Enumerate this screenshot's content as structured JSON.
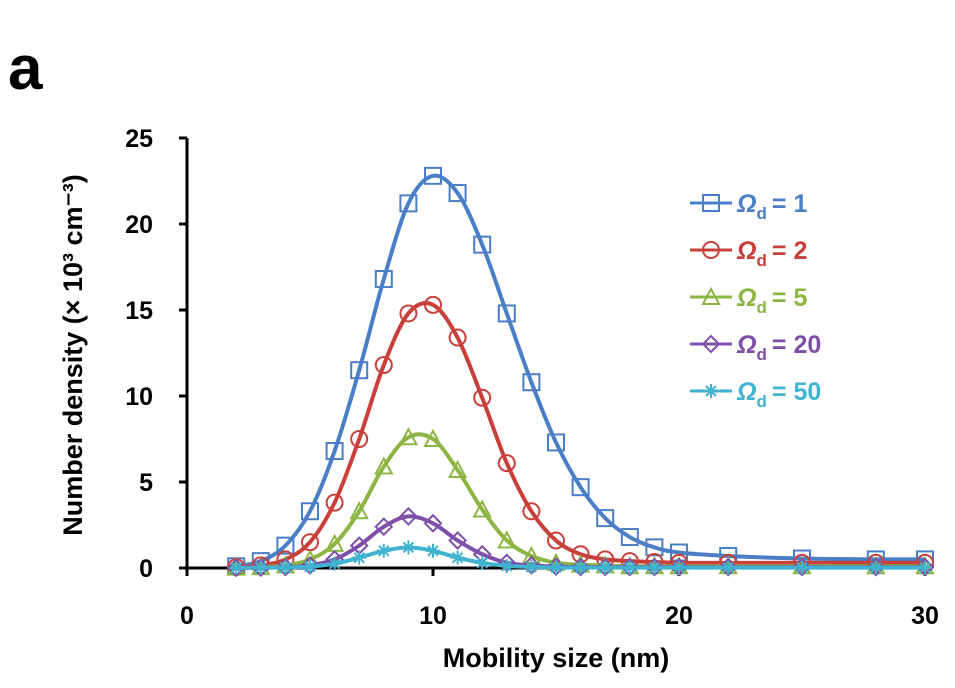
{
  "panel_label": "a",
  "chart_data": {
    "type": "line",
    "title": "",
    "xlabel": "Mobility size (nm)",
    "ylabel": "Number density (× 10³ cm⁻³)",
    "xlim": [
      0,
      30
    ],
    "ylim": [
      0,
      25
    ],
    "xticks": [
      "0",
      "10",
      "20",
      "30"
    ],
    "yticks": [
      "0",
      "5",
      "10",
      "15",
      "20",
      "25"
    ],
    "x": [
      2,
      3,
      4,
      5,
      6,
      7,
      8,
      9,
      10,
      11,
      12,
      13,
      14,
      15,
      16,
      17,
      18,
      19,
      20,
      22,
      25,
      28,
      30
    ],
    "series": [
      {
        "name": "Ωd = 1",
        "symbol": "Ω",
        "subscript": "d",
        "value_text": "= 1",
        "marker": "square",
        "color": "#4a7ec6",
        "values": [
          0.1,
          0.4,
          1.3,
          3.3,
          6.8,
          11.5,
          16.8,
          21.2,
          22.8,
          21.8,
          18.8,
          14.8,
          10.8,
          7.3,
          4.7,
          2.9,
          1.8,
          1.2,
          0.9,
          0.7,
          0.55,
          0.5,
          0.5
        ]
      },
      {
        "name": "Ωd = 2",
        "symbol": "Ω",
        "subscript": "d",
        "value_text": "= 2",
        "marker": "circle",
        "color": "#c9403a",
        "values": [
          0.05,
          0.15,
          0.5,
          1.5,
          3.8,
          7.5,
          11.8,
          14.8,
          15.3,
          13.4,
          9.9,
          6.1,
          3.3,
          1.6,
          0.8,
          0.5,
          0.4,
          0.35,
          0.3,
          0.3,
          0.3,
          0.3,
          0.3
        ]
      },
      {
        "name": "Ωd = 5",
        "symbol": "Ω",
        "subscript": "d",
        "value_text": "= 5",
        "marker": "triangle",
        "color": "#8db543",
        "values": [
          0.02,
          0.05,
          0.15,
          0.5,
          1.4,
          3.3,
          5.9,
          7.6,
          7.5,
          5.7,
          3.4,
          1.6,
          0.7,
          0.3,
          0.2,
          0.15,
          0.1,
          0.1,
          0.1,
          0.1,
          0.1,
          0.1,
          0.1
        ]
      },
      {
        "name": "Ωd = 20",
        "symbol": "Ω",
        "subscript": "d",
        "value_text": "= 20",
        "marker": "diamond",
        "color": "#7e4fa8",
        "values": [
          0.01,
          0.02,
          0.05,
          0.15,
          0.5,
          1.3,
          2.4,
          3.0,
          2.6,
          1.6,
          0.8,
          0.3,
          0.15,
          0.08,
          0.05,
          0.05,
          0.05,
          0.05,
          0.05,
          0.05,
          0.05,
          0.05,
          0.05
        ]
      },
      {
        "name": "Ωd = 50",
        "symbol": "Ω",
        "subscript": "d",
        "value_text": "= 50",
        "marker": "asterisk",
        "color": "#3fb3cf",
        "values": [
          0.01,
          0.02,
          0.03,
          0.08,
          0.25,
          0.6,
          1.0,
          1.2,
          1.0,
          0.6,
          0.3,
          0.12,
          0.06,
          0.03,
          0.02,
          0.02,
          0.02,
          0.02,
          0.02,
          0.02,
          0.02,
          0.02,
          0.02
        ]
      }
    ],
    "grid": false,
    "legend_position": "top-right"
  }
}
